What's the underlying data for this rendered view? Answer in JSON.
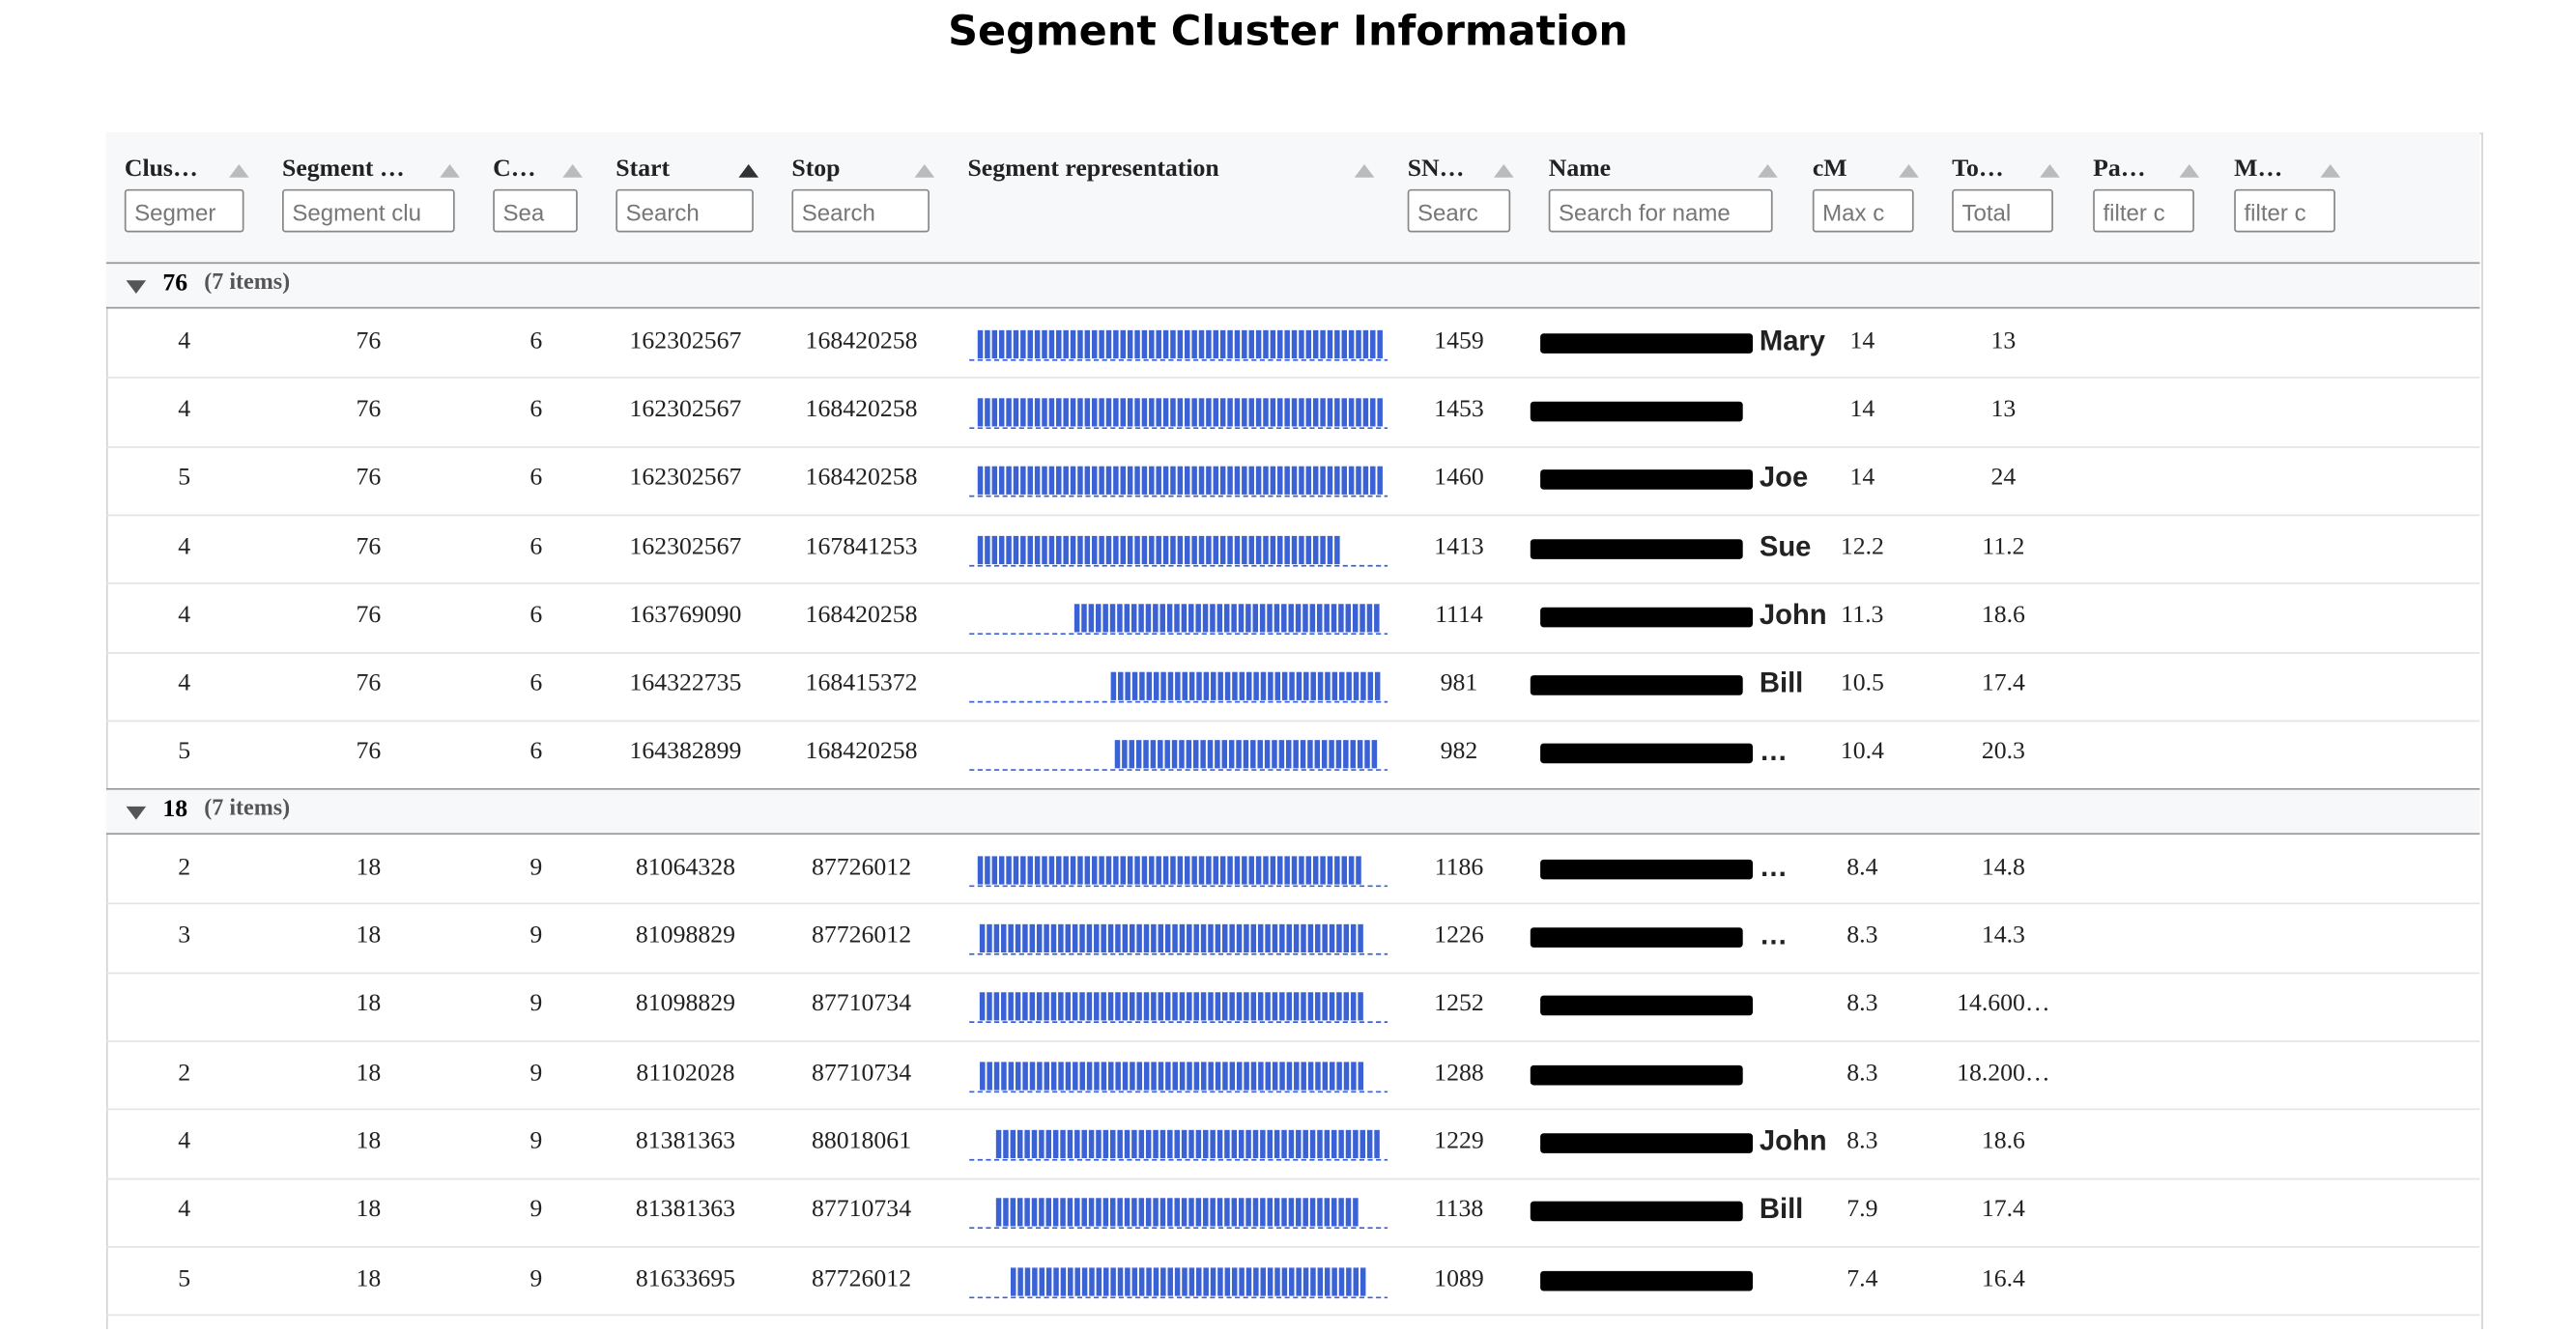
{
  "title": "Segment Cluster Information",
  "columns": [
    {
      "label": "Clus…",
      "placeholder": "Segmer"
    },
    {
      "label": "Segment …",
      "placeholder": "Segment clu"
    },
    {
      "label": "C…",
      "placeholder": "Sea"
    },
    {
      "label": "Start",
      "placeholder": "Search"
    },
    {
      "label": "Stop",
      "placeholder": "Search"
    },
    {
      "label": "Segment representation",
      "placeholder": null
    },
    {
      "label": "SN…",
      "placeholder": "Searc"
    },
    {
      "label": "Name",
      "placeholder": "Search for name"
    },
    {
      "label": "cM",
      "placeholder": "Max c"
    },
    {
      "label": "To…",
      "placeholder": "Total"
    },
    {
      "label": "Pa…",
      "placeholder": "filter c"
    },
    {
      "label": "M…",
      "placeholder": "filter c"
    }
  ],
  "groups": [
    {
      "key": 76,
      "count_label": "(7 items)",
      "rows": [
        [
          4,
          76,
          6,
          162302567,
          168420258,
          1459,
          "Mary",
          14,
          13
        ],
        [
          4,
          76,
          6,
          162302567,
          168420258,
          1453,
          null,
          14,
          13
        ],
        [
          5,
          76,
          6,
          162302567,
          168420258,
          1460,
          "Joe",
          14,
          24
        ],
        [
          4,
          76,
          6,
          162302567,
          167841253,
          1413,
          "Sue",
          12.2,
          11.2
        ],
        [
          4,
          76,
          6,
          163769090,
          168420258,
          1114,
          "John",
          11.3,
          18.6
        ],
        [
          4,
          76,
          6,
          164322735,
          168415372,
          981,
          "Bill",
          10.5,
          17.4
        ],
        [
          5,
          76,
          6,
          164382899,
          168420258,
          982,
          "…",
          10.4,
          20.3
        ]
      ]
    },
    {
      "key": 18,
      "count_label": "(7 items)",
      "rows": [
        [
          2,
          18,
          9,
          81064328,
          87726012,
          1186,
          "…",
          8.4,
          14.8
        ],
        [
          3,
          18,
          9,
          81098829,
          87726012,
          1226,
          "…",
          8.3,
          14.3
        ],
        [
          null,
          18,
          9,
          81098829,
          87710734,
          1252,
          null,
          8.3,
          "14.600…"
        ],
        [
          2,
          18,
          9,
          81102028,
          87710734,
          1288,
          null,
          8.3,
          "18.200…"
        ],
        [
          4,
          18,
          9,
          81381363,
          88018061,
          1229,
          "John",
          8.3,
          18.6
        ],
        [
          4,
          18,
          9,
          81381363,
          87710734,
          1138,
          "Bill",
          7.9,
          17.4
        ],
        [
          5,
          18,
          9,
          81633695,
          87726012,
          1089,
          null,
          7.4,
          16.4
        ]
      ]
    }
  ]
}
